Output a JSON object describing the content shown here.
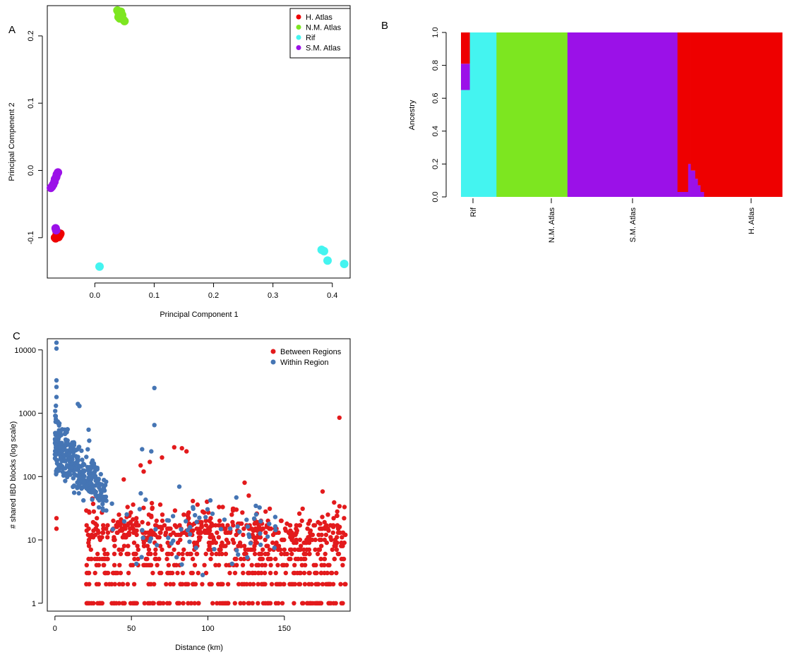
{
  "panels": {
    "a": "A",
    "b": "B",
    "c": "C"
  },
  "chart_data": [
    {
      "type": "scatter",
      "panel": "A",
      "xlabel": "Principal Component 1",
      "ylabel": "Principal Compenent 2",
      "xlim": [
        -0.08,
        0.43
      ],
      "ylim": [
        -0.16,
        0.245
      ],
      "xticks": [
        "0.0",
        "0.1",
        "0.2",
        "0.3",
        "0.4"
      ],
      "yticks": [
        "-0.1",
        "0.0",
        "0.1",
        "0.2"
      ],
      "legend_position": "top-right",
      "colors": {
        "H. Atlas": "#ee0000",
        "N.M. Atlas": "#7de620",
        "Rif": "#44f4f0",
        "S.M. Atlas": "#9b11e8"
      },
      "series": [
        {
          "name": "H. Atlas",
          "points": [
            [
              -0.067,
              -0.1
            ],
            [
              -0.065,
              -0.098
            ],
            [
              -0.062,
              -0.097
            ],
            [
              -0.06,
              -0.095
            ],
            [
              -0.058,
              -0.094
            ],
            [
              -0.063,
              -0.092
            ],
            [
              -0.066,
              -0.101
            ],
            [
              -0.061,
              -0.099
            ],
            [
              -0.064,
              -0.093
            ],
            [
              -0.059,
              -0.096
            ]
          ]
        },
        {
          "name": "N.M. Atlas",
          "points": [
            [
              0.038,
              0.238
            ],
            [
              0.04,
              0.235
            ],
            [
              0.042,
              0.232
            ],
            [
              0.044,
              0.236
            ],
            [
              0.046,
              0.231
            ],
            [
              0.04,
              0.228
            ],
            [
              0.042,
              0.226
            ],
            [
              0.048,
              0.224
            ],
            [
              0.05,
              0.222
            ],
            [
              0.045,
              0.229
            ]
          ]
        },
        {
          "name": "Rif",
          "points": [
            [
              0.008,
              -0.143
            ],
            [
              0.382,
              -0.118
            ],
            [
              0.386,
              -0.12
            ],
            [
              0.392,
              -0.134
            ],
            [
              0.42,
              -0.139
            ]
          ]
        },
        {
          "name": "S.M. Atlas",
          "points": [
            [
              -0.062,
              -0.003
            ],
            [
              -0.064,
              -0.006
            ],
            [
              -0.065,
              -0.01
            ],
            [
              -0.067,
              -0.013
            ],
            [
              -0.068,
              -0.017
            ],
            [
              -0.07,
              -0.021
            ],
            [
              -0.072,
              -0.024
            ],
            [
              -0.074,
              -0.026
            ],
            [
              -0.066,
              -0.086
            ],
            [
              -0.065,
              -0.089
            ]
          ]
        }
      ]
    },
    {
      "type": "bar",
      "subtype": "stacked-ancestry",
      "panel": "B",
      "ylabel": "Ancestry",
      "ylim": [
        0,
        1
      ],
      "yticks": [
        "0.0",
        "0.2",
        "0.4",
        "0.6",
        "0.8",
        "1.0"
      ],
      "group_labels": [
        "Rif",
        "N.M. Atlas",
        "S.M. Atlas",
        "H. Atlas"
      ],
      "component_colors": [
        "#44f4f0",
        "#7de620",
        "#9b11e8",
        "#ee0000"
      ],
      "components": [
        "Rif",
        "N.M. Atlas",
        "S.M. Atlas",
        "H. Atlas"
      ],
      "individuals": [
        {
          "group": "Rif",
          "weight": 1,
          "values": [
            0.65,
            0,
            0.16,
            0.19
          ]
        },
        {
          "group": "Rif",
          "weight": 3,
          "values": [
            1,
            0,
            0,
            0
          ]
        },
        {
          "group": "N.M. Atlas",
          "weight": 8,
          "values": [
            0,
            1,
            0,
            0
          ]
        },
        {
          "group": "S.M. Atlas",
          "weight": 12.4,
          "values": [
            0,
            0,
            1,
            0
          ]
        },
        {
          "group": "H. Atlas",
          "weight": 1.2,
          "values": [
            0,
            0,
            0.03,
            0.97
          ]
        },
        {
          "group": "H. Atlas",
          "weight": 0.3,
          "values": [
            0,
            0,
            0.2,
            0.8
          ]
        },
        {
          "group": "H. Atlas",
          "weight": 0.5,
          "values": [
            0,
            0,
            0.16,
            0.84
          ]
        },
        {
          "group": "H. Atlas",
          "weight": 0.3,
          "values": [
            0,
            0,
            0.11,
            0.89
          ]
        },
        {
          "group": "H. Atlas",
          "weight": 0.3,
          "values": [
            0,
            0,
            0.07,
            0.93
          ]
        },
        {
          "group": "H. Atlas",
          "weight": 0.4,
          "values": [
            0,
            0,
            0.03,
            0.97
          ]
        },
        {
          "group": "H. Atlas",
          "weight": 8.8,
          "values": [
            0,
            0,
            0,
            1
          ]
        }
      ]
    },
    {
      "type": "scatter",
      "panel": "C",
      "xlabel": "Distance (km)",
      "ylabel": "# shared IBD blocks (log scale)",
      "yscale": "log",
      "xlim": [
        -5,
        193
      ],
      "ylim": [
        0.75,
        15000
      ],
      "xticks": [
        0,
        50,
        100,
        150
      ],
      "yticks": [
        1,
        10,
        100,
        1000,
        10000
      ],
      "legend_position": "top-right",
      "series": [
        {
          "name": "Between Regions",
          "color": "#e31a1c",
          "generated": true
        },
        {
          "name": "Within Region",
          "color": "#4575b4",
          "generated": true
        }
      ]
    }
  ]
}
